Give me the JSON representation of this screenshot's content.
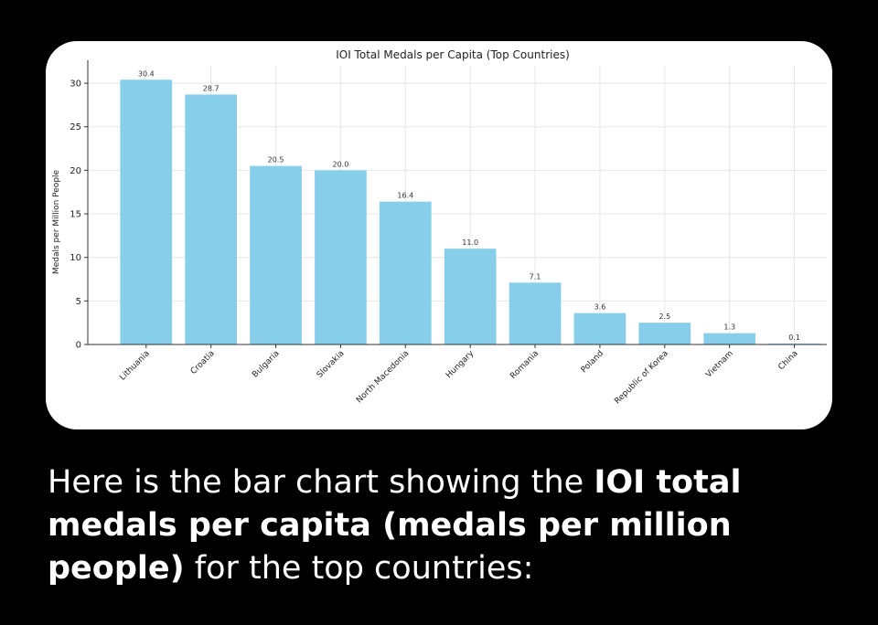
{
  "chart_data": {
    "type": "bar",
    "title": "IOI Total Medals per Capita (Top Countries)",
    "xlabel": "",
    "ylabel": "Medals per Million People",
    "categories": [
      "Lithuania",
      "Croatia",
      "Bulgaria",
      "Slovakia",
      "North Macedonia",
      "Hungary",
      "Romania",
      "Poland",
      "Republic of Korea",
      "Vietnam",
      "China"
    ],
    "values": [
      30.4,
      28.7,
      20.5,
      20.0,
      16.4,
      11.0,
      7.1,
      3.6,
      2.5,
      1.3,
      0.1
    ],
    "value_labels": [
      "30.4",
      "28.7",
      "20.5",
      "20.0",
      "16.4",
      "11.0",
      "7.1",
      "3.6",
      "2.5",
      "1.3",
      "0.1"
    ],
    "ylim": [
      0,
      32
    ],
    "yticks": [
      0,
      5,
      10,
      15,
      20,
      25,
      30
    ],
    "grid": true,
    "bar_color": "#87ceeb"
  },
  "caption": {
    "part1": "Here is the bar chart showing the ",
    "bold1": "IOI total medals per capita (medals per million people)",
    "part2": " for the top countries:"
  }
}
